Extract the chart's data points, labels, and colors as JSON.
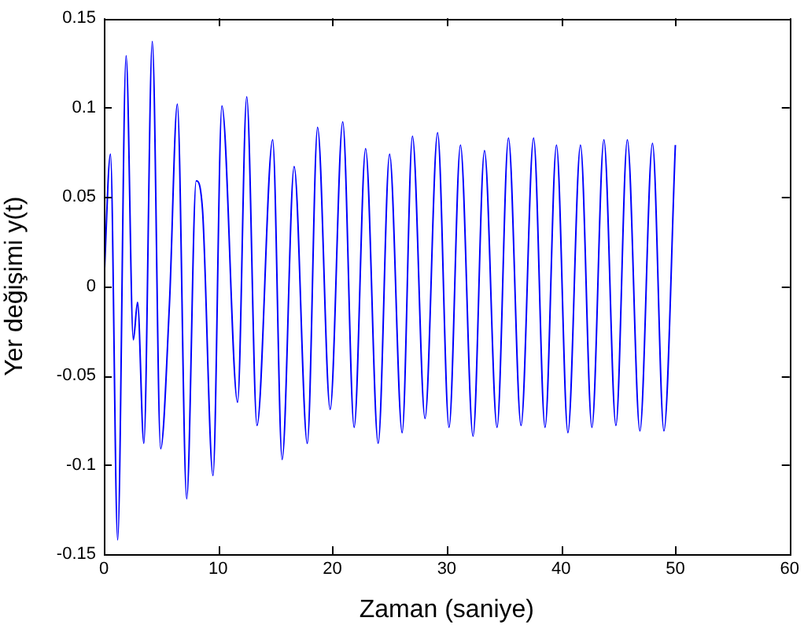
{
  "chart_data": {
    "type": "line",
    "xlabel": "Zaman (saniye)",
    "ylabel": "Yer değişimi y(t)",
    "xlim": [
      0,
      60
    ],
    "xticks": [
      0,
      10,
      20,
      30,
      40,
      50,
      60
    ],
    "ylim": [
      -0.15,
      0.15
    ],
    "yticks": [
      -0.15,
      -0.1,
      -0.05,
      0,
      0.05,
      0.1,
      0.15
    ],
    "grid": false,
    "legend": false,
    "marker": "none",
    "line_style": "solid",
    "series": [
      {
        "color": "#0000ff",
        "x": [
          0,
          0.58,
          1.21,
          1.95,
          2.58,
          2.95,
          3.5,
          4.24,
          4.97,
          5.74,
          6.43,
          7.25,
          8.08,
          8.63,
          9.55,
          10.33,
          11.7,
          12.5,
          13.4,
          14.77,
          15.6,
          16.65,
          17.8,
          18.7,
          19.8,
          20.9,
          21.9,
          22.9,
          24.0,
          25.0,
          26.1,
          27.0,
          28.1,
          29.2,
          30.2,
          31.2,
          32.3,
          33.3,
          34.4,
          35.4,
          36.5,
          37.6,
          38.6,
          39.6,
          40.6,
          41.7,
          42.7,
          43.75,
          44.8,
          45.8,
          46.9,
          48.0,
          49.0,
          50.0
        ],
        "values": [
          0,
          0.074,
          -0.142,
          0.129,
          -0.03,
          -0.009,
          -0.088,
          0.137,
          -0.091,
          -0.01,
          0.102,
          -0.119,
          0.059,
          0.043,
          -0.106,
          0.101,
          -0.065,
          0.106,
          -0.078,
          0.082,
          -0.097,
          0.067,
          -0.088,
          0.089,
          -0.069,
          0.092,
          -0.079,
          0.077,
          -0.088,
          0.074,
          -0.082,
          0.084,
          -0.074,
          0.086,
          -0.079,
          0.079,
          -0.084,
          0.076,
          -0.079,
          0.083,
          -0.078,
          0.083,
          -0.079,
          0.079,
          -0.082,
          0.079,
          -0.079,
          0.082,
          -0.078,
          0.082,
          -0.081,
          0.08,
          -0.081,
          0.079
        ]
      }
    ]
  }
}
